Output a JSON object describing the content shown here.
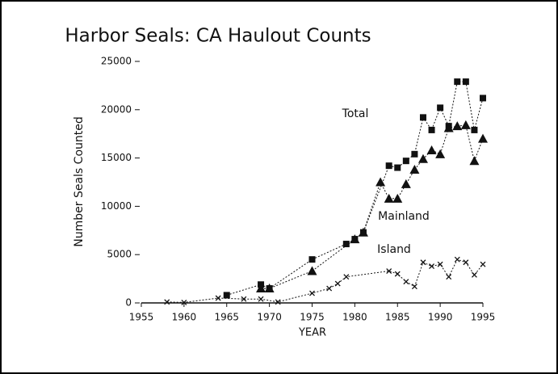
{
  "chart_data": {
    "type": "line",
    "title": "Harbor Seals: CA Haulout Counts",
    "x_label": "YEAR",
    "y_label": "Number Seals Counted",
    "xlim": [
      1955,
      1995
    ],
    "xticks": [
      1955,
      1960,
      1965,
      1970,
      1975,
      1980,
      1985,
      1990,
      1995
    ],
    "ylim": [
      0,
      25000
    ],
    "yticks": [
      0,
      5000,
      10000,
      15000,
      20000,
      25000
    ],
    "series": [
      {
        "name": "Total",
        "color": "#111111",
        "marker": "square",
        "x": [
          1965,
          1969,
          1970,
          1975,
          1979,
          1980,
          1981,
          1984,
          1985,
          1986,
          1987,
          1988,
          1989,
          1990,
          1991,
          1992,
          1993,
          1994,
          1995
        ],
        "values": [
          800,
          1900,
          1500,
          4500,
          6100,
          6600,
          7300,
          14200,
          14000,
          14700,
          15400,
          19200,
          17900,
          20200,
          18300,
          22900,
          22900,
          17900,
          21200
        ]
      },
      {
        "name": "Mainland",
        "color": "#111111",
        "marker": "triangle",
        "x": [
          1969,
          1970,
          1975,
          1980,
          1981,
          1983,
          1984,
          1985,
          1986,
          1987,
          1988,
          1989,
          1990,
          1991,
          1992,
          1993,
          1994,
          1995
        ],
        "values": [
          1500,
          1500,
          3300,
          6600,
          7300,
          12500,
          10800,
          10800,
          12300,
          13800,
          14900,
          15800,
          15400,
          18100,
          18300,
          18400,
          14700,
          17000
        ]
      },
      {
        "name": "Island",
        "color": "#111111",
        "marker": "x",
        "x": [
          1958,
          1960,
          1964,
          1967,
          1969,
          1971,
          1975,
          1977,
          1978,
          1979,
          1984,
          1985,
          1986,
          1987,
          1988,
          1989,
          1990,
          1991,
          1992,
          1993,
          1994,
          1995
        ],
        "values": [
          100,
          50,
          500,
          400,
          400,
          100,
          1000,
          1500,
          2000,
          2700,
          3300,
          3000,
          2200,
          1700,
          4200,
          3800,
          4000,
          2700,
          4500,
          4200,
          2900,
          4000
        ]
      }
    ]
  }
}
